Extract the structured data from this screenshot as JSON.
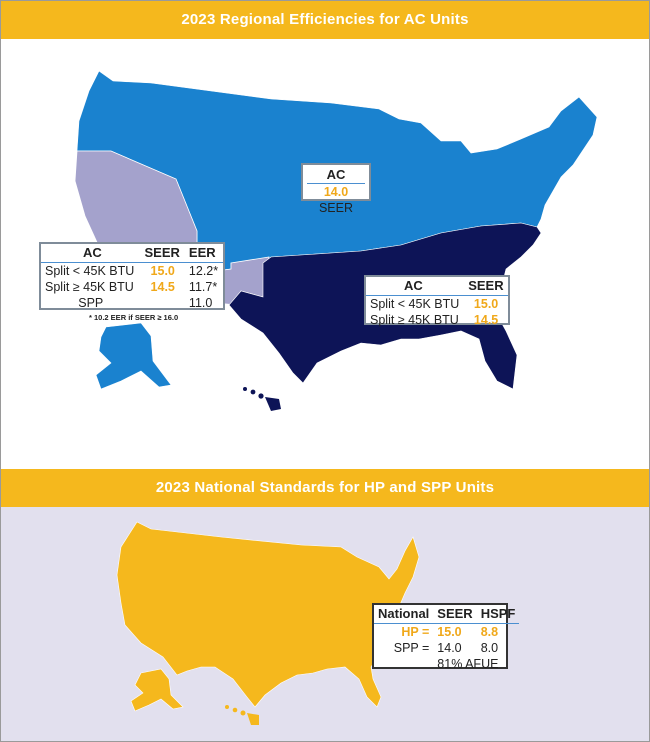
{
  "top_banner": "2023 Regional Efficiencies for AC Units",
  "bottom_banner": "2023 National Standards for HP and SPP Units",
  "north_box": {
    "title": "AC",
    "seer_value": "14.0",
    "seer_label": "SEER"
  },
  "southwest_box": {
    "headers": [
      "AC",
      "SEER",
      "EER"
    ],
    "rows": [
      {
        "label": "Split < 45K BTU",
        "seer": "15.0",
        "eer": "12.2*"
      },
      {
        "label": "Split ≥ 45K BTU",
        "seer": "14.5",
        "eer": "11.7*"
      },
      {
        "label": "SPP",
        "seer": "",
        "eer": "11.0"
      }
    ],
    "footnote": "* 10.2 EER if SEER ≥ 16.0"
  },
  "southeast_box": {
    "headers": [
      "AC",
      "SEER"
    ],
    "rows": [
      {
        "label": "Split < 45K BTU",
        "seer": "15.0"
      },
      {
        "label": "Split ≥ 45K BTU",
        "seer": "14.5"
      }
    ]
  },
  "national_box": {
    "headers": [
      "National",
      "SEER",
      "HSPF"
    ],
    "rows": [
      {
        "label": "HP =",
        "seer": "15.0",
        "hspf": "8.8"
      },
      {
        "label": "SPP =",
        "seer": "14.0",
        "hspf": "8.0"
      },
      {
        "label": "",
        "seer": "81% AFUE",
        "hspf": ""
      }
    ]
  },
  "colors": {
    "north": "#1a82cf",
    "southwest": "#a4a2cc",
    "southeast": "#0d1457",
    "national": "#f5b81d",
    "accent_text": "#f0a81a"
  }
}
